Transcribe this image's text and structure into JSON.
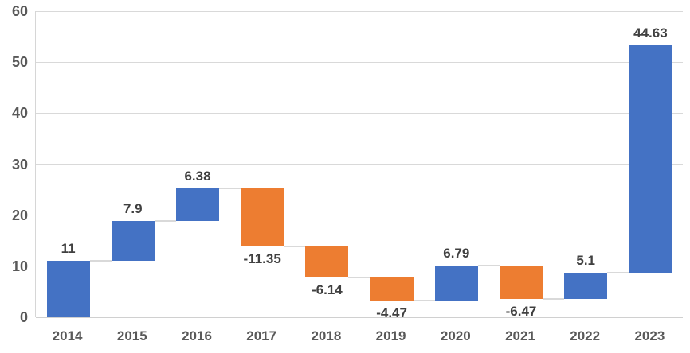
{
  "chart_data": {
    "type": "bar",
    "subtype": "waterfall",
    "title": "",
    "xlabel": "",
    "ylabel": "",
    "categories": [
      "2014",
      "2015",
      "2016",
      "2017",
      "2018",
      "2019",
      "2020",
      "2021",
      "2022",
      "2023"
    ],
    "values": [
      11,
      7.9,
      6.38,
      -11.35,
      -6.14,
      -4.47,
      6.79,
      -6.47,
      5.1,
      44.63
    ],
    "labels": [
      "11",
      "7.9",
      "6.38",
      "-11.35",
      "-6.14",
      "-4.47",
      "6.79",
      "-6.47",
      "5.1",
      "44.63"
    ],
    "cumulative_start": [
      0,
      11,
      18.9,
      25.28,
      13.93,
      7.79,
      3.32,
      10.11,
      3.64,
      8.74
    ],
    "cumulative_end": [
      11,
      18.9,
      25.28,
      13.93,
      7.79,
      3.32,
      10.11,
      3.64,
      8.74,
      53.37
    ],
    "ylim": [
      0,
      60
    ],
    "yticks": [
      0,
      10,
      20,
      30,
      40,
      50,
      60
    ],
    "grid": true,
    "legend": "none",
    "connectors": true,
    "colors": {
      "increase": "#4472C4",
      "decrease": "#ED7D31",
      "gridline": "#D9D9D9",
      "axis_line": "#D0D0D0",
      "tick_label": "#595959",
      "data_label": "#404040",
      "background": "#FFFFFF"
    }
  }
}
